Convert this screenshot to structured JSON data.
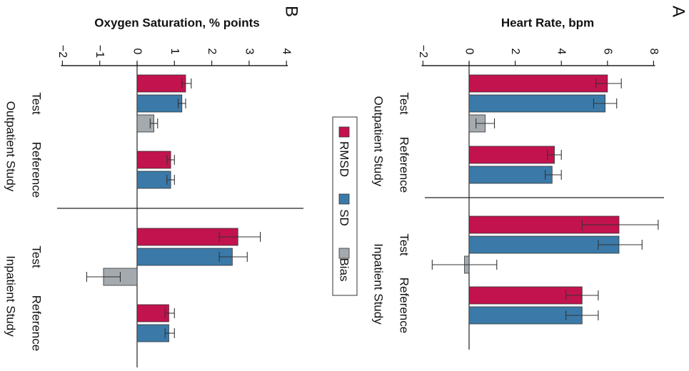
{
  "colors": {
    "rmsd": "#c2134f",
    "sd": "#3b7aa8",
    "bias": "#a5aaae",
    "axis": "#222222"
  },
  "legend": [
    {
      "name": "RMSD",
      "color": "#c2134f"
    },
    {
      "name": "SD",
      "color": "#3b7aa8"
    },
    {
      "name": "Bias",
      "color": "#a5aaae"
    }
  ],
  "chart_data": [
    {
      "type": "bar",
      "panel": "A",
      "title": "Heart Rate, bpm",
      "orientation": "figure rotated 90° clockwise; value axis runs top-to-bottom",
      "ylim": [
        -2,
        8
      ],
      "ticks": [
        "−2",
        "0",
        "2",
        "4",
        "6",
        "8"
      ],
      "groups": [
        {
          "study": "Outpatient Study",
          "label": "Test",
          "bars": [
            {
              "series": "RMSD",
              "value": 6.0,
              "err_low": 5.5,
              "err_high": 6.6
            },
            {
              "series": "SD",
              "value": 5.9,
              "err_low": 5.4,
              "err_high": 6.4
            },
            {
              "series": "Bias",
              "value": 0.7,
              "err_low": 0.3,
              "err_high": 1.1
            }
          ]
        },
        {
          "study": "Outpatient Study",
          "label": "Reference",
          "bars": [
            {
              "series": "RMSD",
              "value": 3.7,
              "err_low": 3.4,
              "err_high": 4.0
            },
            {
              "series": "SD",
              "value": 3.6,
              "err_low": 3.3,
              "err_high": 4.0
            }
          ]
        },
        {
          "study": "Inpatient Study",
          "label": "Test",
          "bars": [
            {
              "series": "RMSD",
              "value": 6.5,
              "err_low": 4.9,
              "err_high": 8.2
            },
            {
              "series": "SD",
              "value": 6.5,
              "err_low": 5.6,
              "err_high": 7.5
            },
            {
              "series": "Bias",
              "value": -0.2,
              "err_low": -1.6,
              "err_high": 1.2
            }
          ]
        },
        {
          "study": "Inpatient Study",
          "label": "Reference",
          "bars": [
            {
              "series": "RMSD",
              "value": 4.9,
              "err_low": 4.2,
              "err_high": 5.6
            },
            {
              "series": "SD",
              "value": 4.9,
              "err_low": 4.2,
              "err_high": 5.6
            }
          ]
        }
      ]
    },
    {
      "type": "bar",
      "panel": "B",
      "title": "Oxygen Saturation, % points",
      "orientation": "figure rotated 90° clockwise; value axis runs top-to-bottom",
      "ylim": [
        -2,
        4
      ],
      "ticks": [
        "−2",
        "−1",
        "0",
        "1",
        "2",
        "3",
        "4"
      ],
      "groups": [
        {
          "study": "Outpatient Study",
          "label": "Test",
          "bars": [
            {
              "series": "RMSD",
              "value": 1.3,
              "err_low": 1.2,
              "err_high": 1.45
            },
            {
              "series": "SD",
              "value": 1.2,
              "err_low": 1.1,
              "err_high": 1.3
            },
            {
              "series": "Bias",
              "value": 0.45,
              "err_low": 0.35,
              "err_high": 0.55
            }
          ]
        },
        {
          "study": "Outpatient Study",
          "label": "Reference",
          "bars": [
            {
              "series": "RMSD",
              "value": 0.9,
              "err_low": 0.8,
              "err_high": 1.0
            },
            {
              "series": "SD",
              "value": 0.9,
              "err_low": 0.8,
              "err_high": 1.0
            }
          ]
        },
        {
          "study": "Inpatient Study",
          "label": "Test",
          "bars": [
            {
              "series": "RMSD",
              "value": 2.7,
              "err_low": 2.2,
              "err_high": 3.3
            },
            {
              "series": "SD",
              "value": 2.55,
              "err_low": 2.2,
              "err_high": 2.95
            },
            {
              "series": "Bias",
              "value": -0.9,
              "err_low": -1.35,
              "err_high": -0.45
            }
          ]
        },
        {
          "study": "Inpatient Study",
          "label": "Reference",
          "bars": [
            {
              "series": "RMSD",
              "value": 0.85,
              "err_low": 0.75,
              "err_high": 1.0
            },
            {
              "series": "SD",
              "value": 0.85,
              "err_low": 0.75,
              "err_high": 1.0
            }
          ]
        }
      ]
    }
  ]
}
